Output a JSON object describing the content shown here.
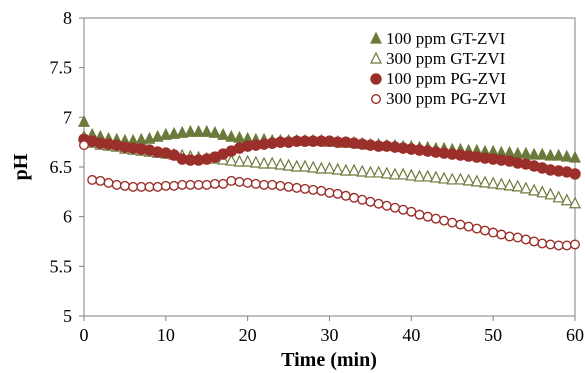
{
  "chart_data": {
    "type": "scatter",
    "xlabel": "Time (min)",
    "ylabel": "pH",
    "xlim": [
      0,
      60
    ],
    "ylim": [
      5,
      8
    ],
    "xticks": [
      "0",
      "10",
      "20",
      "30",
      "40",
      "50",
      "60"
    ],
    "yticks": [
      "5",
      "5.5",
      "6",
      "6.5",
      "7",
      "7.5",
      "8"
    ],
    "grid": false,
    "legend_position": "top-right",
    "series": [
      {
        "name": "100 ppm GT-ZVI",
        "marker": "triangle-filled",
        "color": "#6b7a3a",
        "x": [
          0,
          1,
          2,
          3,
          4,
          5,
          6,
          7,
          8,
          9,
          10,
          11,
          12,
          13,
          14,
          15,
          16,
          17,
          18,
          19,
          20,
          21,
          22,
          23,
          24,
          25,
          26,
          27,
          28,
          29,
          30,
          31,
          32,
          33,
          34,
          35,
          36,
          37,
          38,
          39,
          40,
          41,
          42,
          43,
          44,
          45,
          46,
          47,
          48,
          49,
          50,
          51,
          52,
          53,
          54,
          55,
          56,
          57,
          58,
          59,
          60
        ],
        "y": [
          6.95,
          6.82,
          6.8,
          6.78,
          6.77,
          6.76,
          6.76,
          6.77,
          6.78,
          6.8,
          6.82,
          6.83,
          6.84,
          6.85,
          6.85,
          6.85,
          6.84,
          6.82,
          6.8,
          6.79,
          6.78,
          6.77,
          6.77,
          6.76,
          6.76,
          6.76,
          6.76,
          6.76,
          6.76,
          6.76,
          6.75,
          6.75,
          6.74,
          6.74,
          6.73,
          6.72,
          6.72,
          6.71,
          6.71,
          6.7,
          6.7,
          6.69,
          6.69,
          6.68,
          6.68,
          6.67,
          6.67,
          6.66,
          6.66,
          6.65,
          6.65,
          6.64,
          6.64,
          6.63,
          6.63,
          6.62,
          6.62,
          6.61,
          6.61,
          6.6,
          6.59
        ]
      },
      {
        "name": "300 ppm GT-ZVI",
        "marker": "triangle-open",
        "color": "#6b7a3a",
        "x": [
          0,
          1,
          2,
          3,
          4,
          5,
          6,
          7,
          8,
          9,
          10,
          11,
          12,
          13,
          14,
          15,
          16,
          17,
          18,
          19,
          20,
          21,
          22,
          23,
          24,
          25,
          26,
          27,
          28,
          29,
          30,
          31,
          32,
          33,
          34,
          35,
          36,
          37,
          38,
          39,
          40,
          41,
          42,
          43,
          44,
          45,
          46,
          47,
          48,
          49,
          50,
          51,
          52,
          53,
          54,
          55,
          56,
          57,
          58,
          59,
          60
        ],
        "y": [
          6.8,
          6.74,
          6.72,
          6.71,
          6.7,
          6.68,
          6.67,
          6.66,
          6.65,
          6.64,
          6.63,
          6.62,
          6.61,
          6.6,
          6.59,
          6.58,
          6.58,
          6.57,
          6.56,
          6.55,
          6.55,
          6.54,
          6.53,
          6.53,
          6.52,
          6.51,
          6.5,
          6.5,
          6.49,
          6.48,
          6.48,
          6.47,
          6.46,
          6.46,
          6.45,
          6.44,
          6.44,
          6.43,
          6.42,
          6.42,
          6.41,
          6.4,
          6.4,
          6.39,
          6.38,
          6.37,
          6.37,
          6.36,
          6.35,
          6.34,
          6.33,
          6.32,
          6.31,
          6.3,
          6.28,
          6.26,
          6.24,
          6.22,
          6.19,
          6.16,
          6.13
        ]
      },
      {
        "name": "100 ppm PG-ZVI",
        "marker": "circle-filled",
        "color": "#9b2f2a",
        "x": [
          0,
          1,
          2,
          3,
          4,
          5,
          6,
          7,
          8,
          9,
          10,
          11,
          12,
          13,
          14,
          15,
          16,
          17,
          18,
          19,
          20,
          21,
          22,
          23,
          24,
          25,
          26,
          27,
          28,
          29,
          30,
          31,
          32,
          33,
          34,
          35,
          36,
          37,
          38,
          39,
          40,
          41,
          42,
          43,
          44,
          45,
          46,
          47,
          48,
          49,
          50,
          51,
          52,
          53,
          54,
          55,
          56,
          57,
          58,
          59,
          60
        ],
        "y": [
          6.78,
          6.76,
          6.74,
          6.73,
          6.72,
          6.7,
          6.69,
          6.68,
          6.67,
          6.65,
          6.64,
          6.62,
          6.58,
          6.57,
          6.57,
          6.58,
          6.6,
          6.63,
          6.66,
          6.69,
          6.71,
          6.72,
          6.73,
          6.74,
          6.75,
          6.75,
          6.76,
          6.76,
          6.76,
          6.76,
          6.76,
          6.75,
          6.75,
          6.74,
          6.73,
          6.72,
          6.71,
          6.71,
          6.7,
          6.69,
          6.68,
          6.67,
          6.66,
          6.65,
          6.64,
          6.63,
          6.62,
          6.61,
          6.6,
          6.59,
          6.58,
          6.57,
          6.56,
          6.54,
          6.53,
          6.51,
          6.49,
          6.47,
          6.46,
          6.45,
          6.43
        ]
      },
      {
        "name": "300 ppm PG-ZVI",
        "marker": "circle-open",
        "color": "#9b2f2a",
        "x": [
          0,
          1,
          2,
          3,
          4,
          5,
          6,
          7,
          8,
          9,
          10,
          11,
          12,
          13,
          14,
          15,
          16,
          17,
          18,
          19,
          20,
          21,
          22,
          23,
          24,
          25,
          26,
          27,
          28,
          29,
          30,
          31,
          32,
          33,
          34,
          35,
          36,
          37,
          38,
          39,
          40,
          41,
          42,
          43,
          44,
          45,
          46,
          47,
          48,
          49,
          50,
          51,
          52,
          53,
          54,
          55,
          56,
          57,
          58,
          59,
          60
        ],
        "y": [
          6.72,
          6.37,
          6.36,
          6.34,
          6.32,
          6.31,
          6.3,
          6.3,
          6.3,
          6.3,
          6.31,
          6.31,
          6.32,
          6.32,
          6.32,
          6.32,
          6.33,
          6.33,
          6.36,
          6.35,
          6.34,
          6.33,
          6.32,
          6.32,
          6.31,
          6.3,
          6.29,
          6.28,
          6.27,
          6.26,
          6.24,
          6.23,
          6.21,
          6.19,
          6.17,
          6.15,
          6.13,
          6.11,
          6.09,
          6.07,
          6.05,
          6.02,
          6.0,
          5.98,
          5.96,
          5.94,
          5.92,
          5.9,
          5.88,
          5.86,
          5.84,
          5.82,
          5.8,
          5.79,
          5.77,
          5.75,
          5.73,
          5.72,
          5.71,
          5.71,
          5.72
        ]
      }
    ]
  }
}
